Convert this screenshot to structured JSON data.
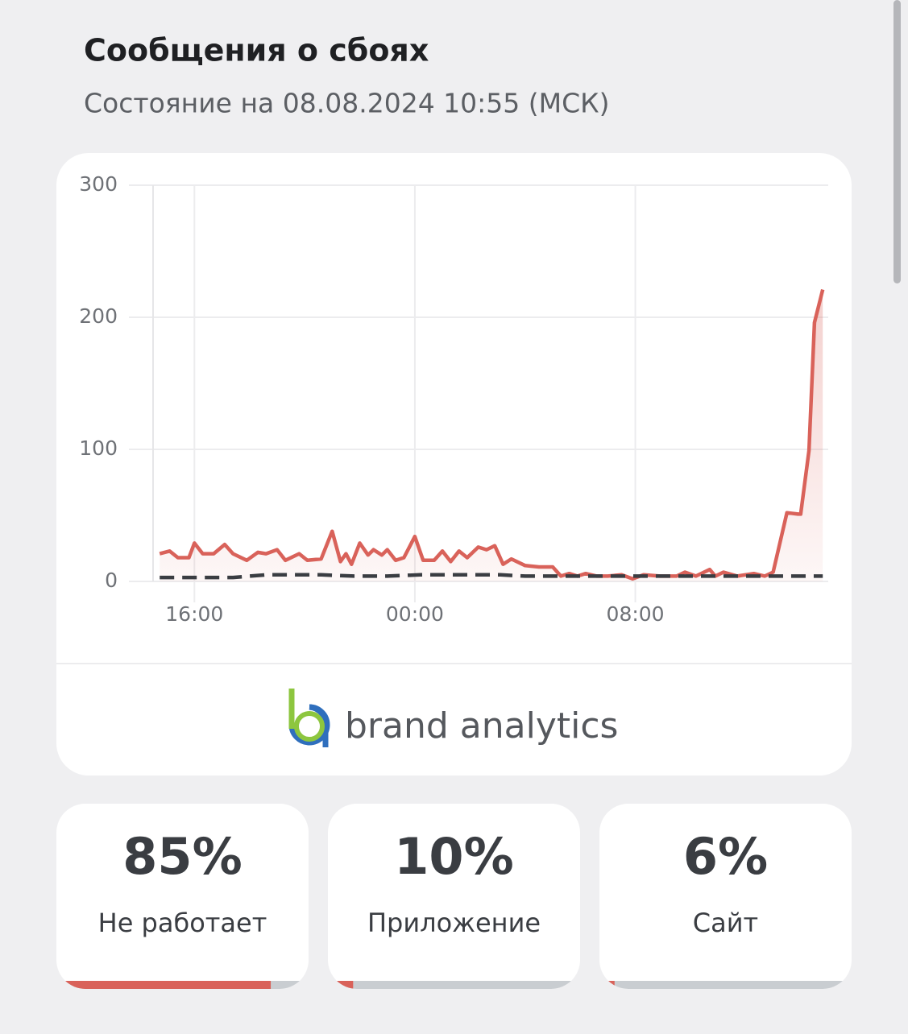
{
  "header": {
    "title": "Сообщения о сбоях",
    "subtitle": "Состояние на 08.08.2024 10:55 (МСК)"
  },
  "chart_data": {
    "type": "line",
    "xlim": [
      14.5,
      39.0
    ],
    "xticks": [
      {
        "value": 16,
        "label": "16:00"
      },
      {
        "value": 24,
        "label": "00:00"
      },
      {
        "value": 32,
        "label": "08:00"
      }
    ],
    "ylim": [
      0,
      300
    ],
    "yticks": [
      0,
      100,
      200,
      300
    ],
    "grid": true,
    "series": [
      {
        "color": "#d9625a",
        "fill": true,
        "x": [
          14.74,
          15.1,
          15.4,
          15.8,
          16.0,
          16.3,
          16.7,
          17.1,
          17.4,
          17.9,
          18.3,
          18.6,
          19.0,
          19.3,
          19.8,
          20.1,
          20.6,
          21.0,
          21.3,
          21.5,
          21.7,
          22.0,
          22.3,
          22.5,
          22.8,
          23.0,
          23.3,
          23.6,
          24.0,
          24.3,
          24.7,
          25.0,
          25.3,
          25.6,
          25.9,
          26.3,
          26.6,
          26.9,
          27.2,
          27.5,
          28.0,
          28.5,
          29.0,
          29.3,
          29.6,
          29.9,
          30.2,
          30.6,
          31.0,
          31.5,
          31.9,
          32.3,
          32.9,
          33.5,
          33.8,
          34.2,
          34.7,
          34.9,
          35.2,
          35.7,
          36.3,
          36.7,
          37.0,
          37.5,
          37.9,
          38.0,
          38.3,
          38.5,
          38.8
        ],
        "values": [
          21,
          23,
          18,
          18,
          29,
          21,
          21,
          28,
          21,
          16,
          22,
          21,
          24,
          16,
          21,
          16,
          17,
          38,
          15,
          21,
          13,
          29,
          20,
          24,
          20,
          24,
          16,
          18,
          34,
          16,
          16,
          23,
          15,
          23,
          18,
          26,
          24,
          27,
          13,
          17,
          12,
          11,
          11,
          4,
          6,
          4,
          6,
          4,
          4,
          5,
          2,
          5,
          4,
          4,
          7,
          4,
          9,
          4,
          7,
          4,
          6,
          4,
          7,
          52,
          51,
          51,
          99,
          196,
          221
        ]
      },
      {
        "color": "#3a3d42",
        "dashed": true,
        "x": [
          14.74,
          17.4,
          18.6,
          20.6,
          21.8,
          23.0,
          24.2,
          27.1,
          28.0,
          38.8
        ],
        "values": [
          3,
          3,
          5,
          5,
          4,
          4,
          5,
          5,
          4,
          4
        ]
      }
    ]
  },
  "brand": {
    "text": "brand analytics"
  },
  "stats": {
    "xlim": [
      0,
      100
    ],
    "color": "#d9625a",
    "values": [
      85,
      10,
      6
    ],
    "value_labels": [
      "85%",
      "10%",
      "6%"
    ],
    "labels": [
      "Не работает",
      "Приложение",
      "Сайт"
    ]
  }
}
